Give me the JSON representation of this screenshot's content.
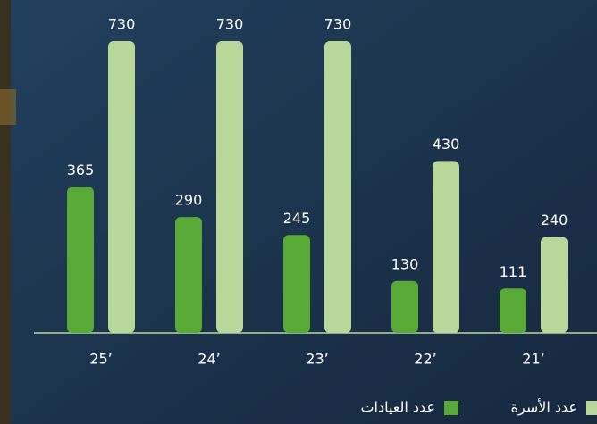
{
  "chart_data": {
    "type": "bar",
    "categories": [
      "25’",
      "24’",
      "23’",
      "22’",
      "21’"
    ],
    "series": [
      {
        "name": "عدد العيادات",
        "color": "#58a936",
        "values": [
          365,
          290,
          245,
          130,
          111
        ]
      },
      {
        "name": "عدد الأسرة",
        "color": "#b8d79b",
        "values": [
          730,
          730,
          730,
          430,
          240
        ]
      }
    ],
    "ylim": [
      0,
      730
    ]
  }
}
